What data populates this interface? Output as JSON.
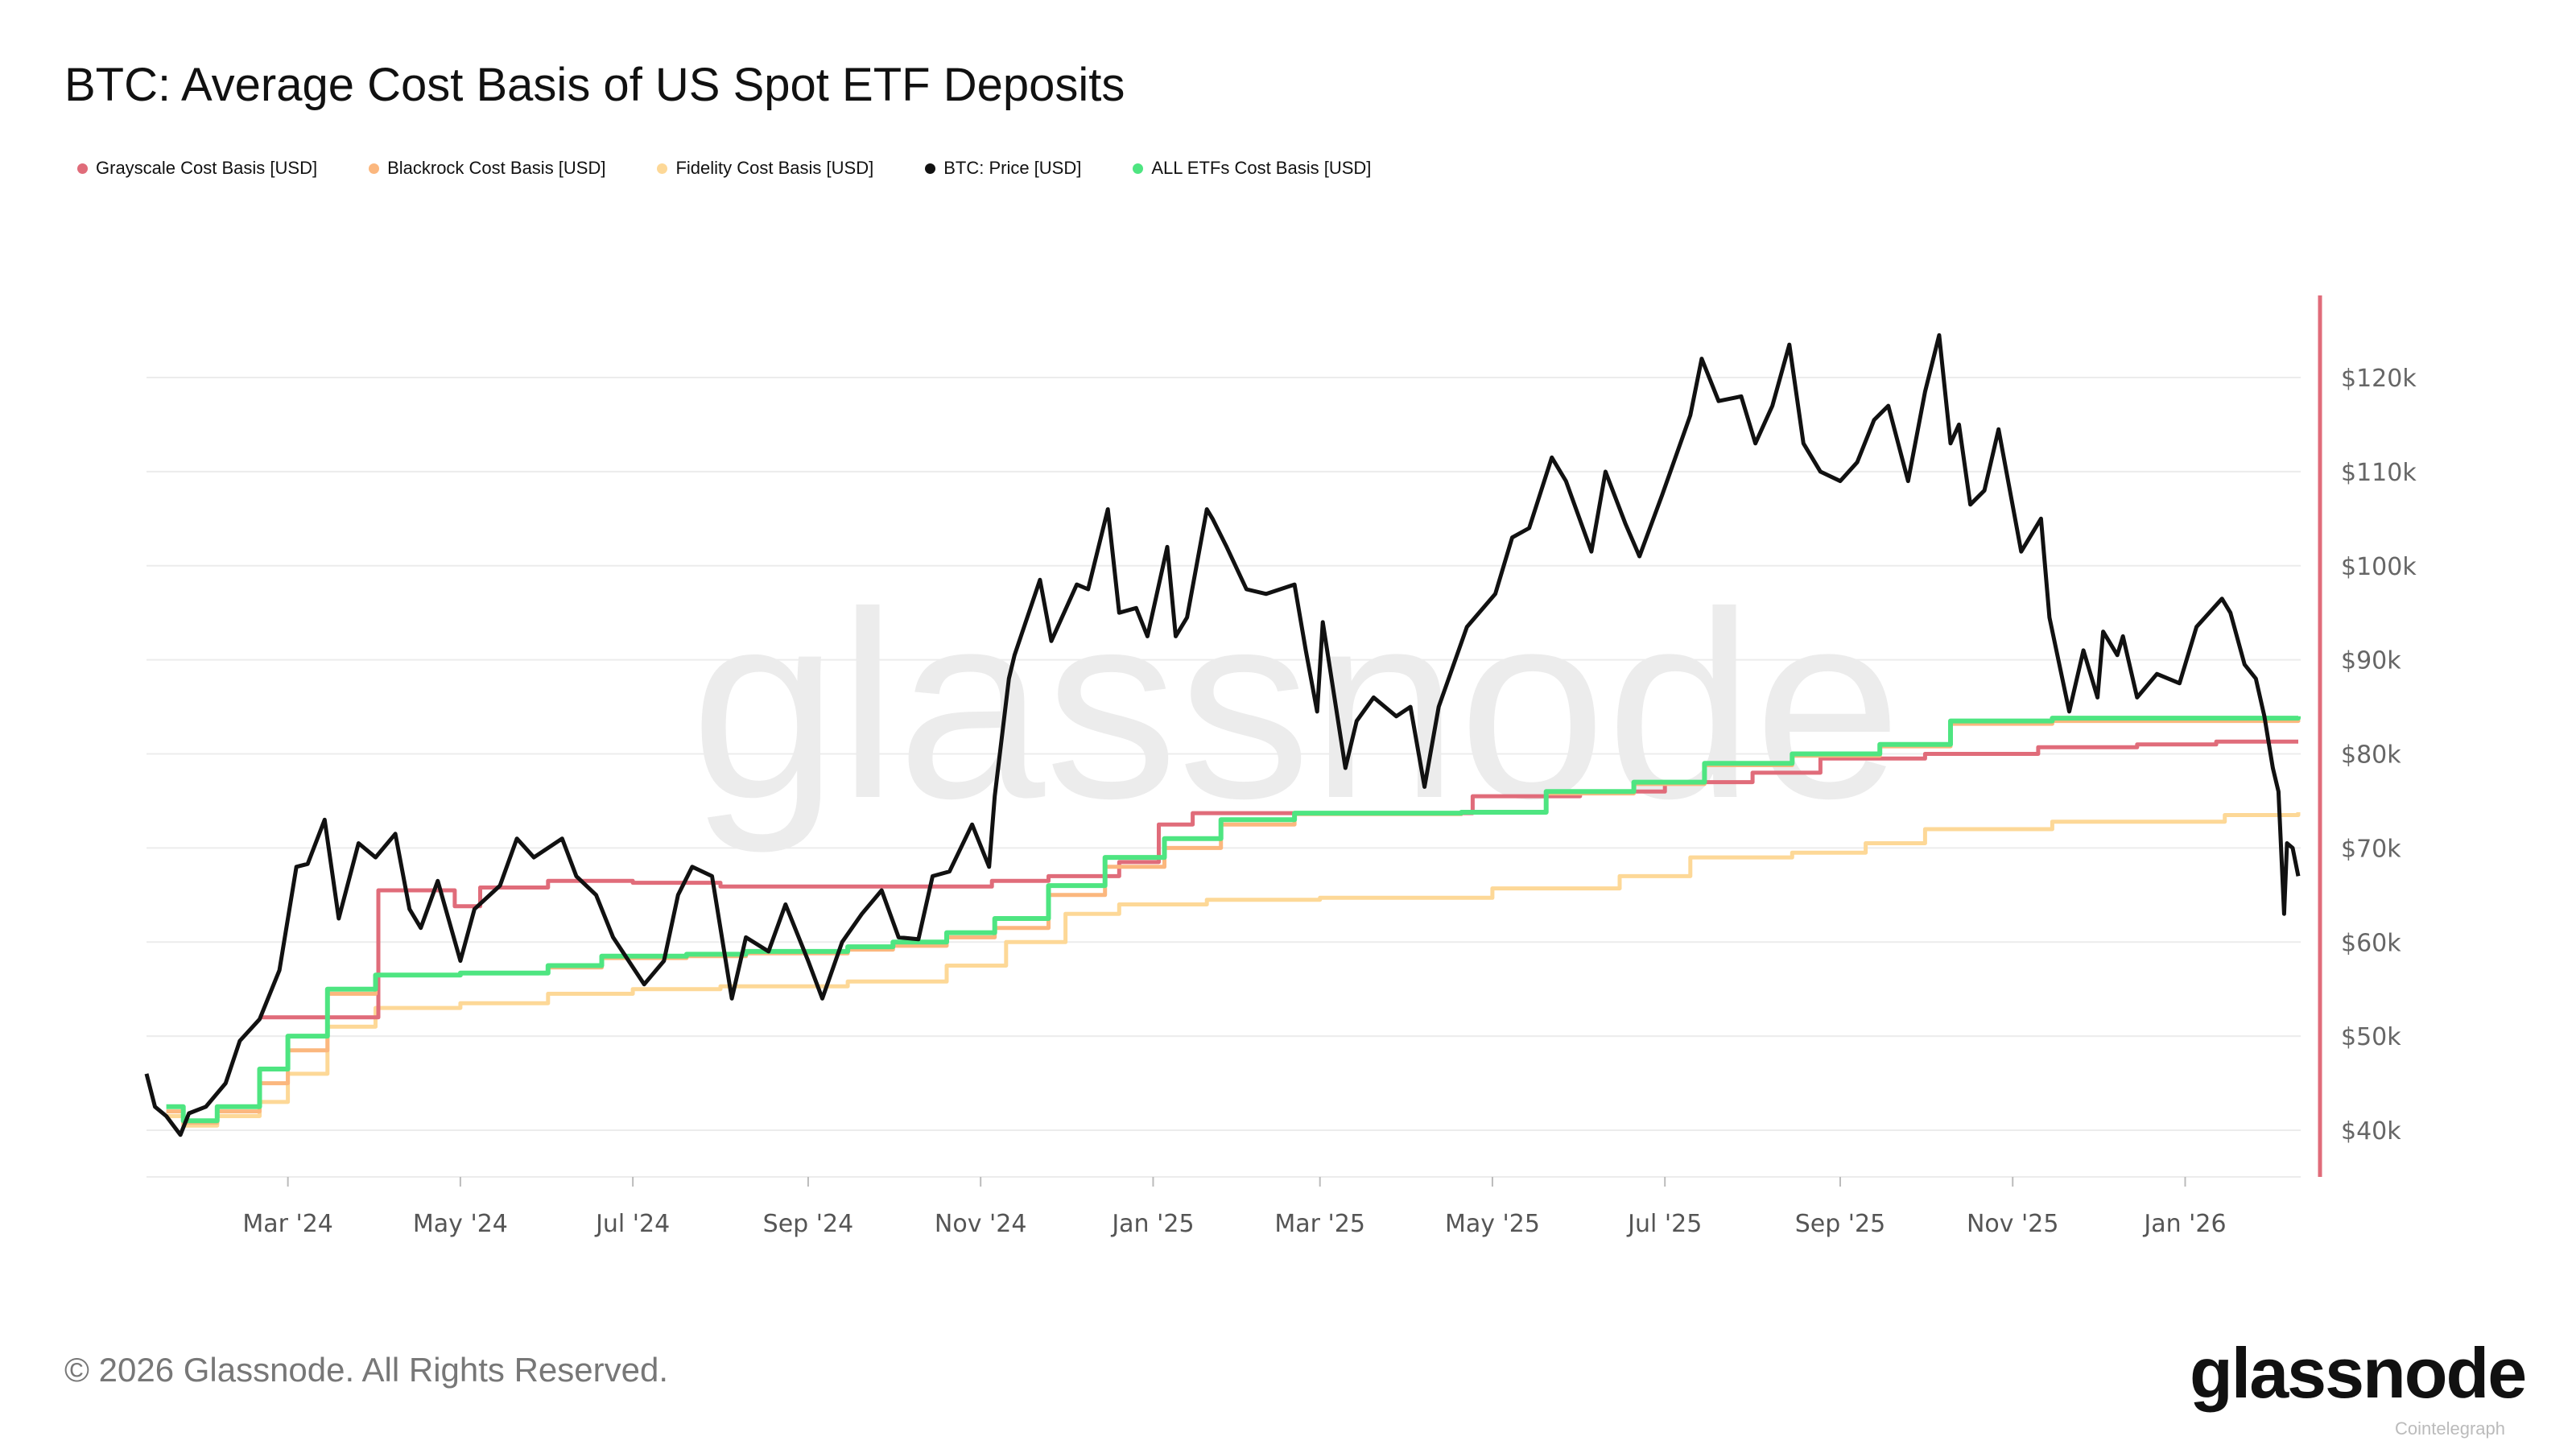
{
  "title": "BTC: Average Cost Basis of US Spot ETF Deposits",
  "footer": "© 2026 Glassnode. All Rights Reserved.",
  "logo": "glassnode",
  "watermark": "glassnode",
  "credit": "Cointelegraph",
  "chart_data": {
    "type": "line",
    "title": "BTC: Average Cost Basis of US Spot ETF Deposits",
    "legend_position": "top-left",
    "grid": true,
    "y_axis_position": "right",
    "ylim": [
      35000,
      129000
    ],
    "xlim": [
      "2024-01-11",
      "2026-02-10"
    ],
    "y_ticks": [
      40000,
      50000,
      60000,
      70000,
      80000,
      90000,
      100000,
      110000,
      120000
    ],
    "y_tick_labels": [
      "$40k",
      "$50k",
      "$60k",
      "$70k",
      "$80k",
      "$90k",
      "$100k",
      "$110k",
      "$120k"
    ],
    "x_ticks": [
      "2024-03-01",
      "2024-05-01",
      "2024-07-01",
      "2024-09-01",
      "2024-11-01",
      "2025-01-01",
      "2025-03-01",
      "2025-05-01",
      "2025-07-01",
      "2025-09-01",
      "2025-11-01",
      "2026-01-01"
    ],
    "x_tick_labels": [
      "Mar '24",
      "May '24",
      "Jul '24",
      "Sep '24",
      "Nov '24",
      "Jan '25",
      "Mar '25",
      "May '25",
      "Jul '25",
      "Sep '25",
      "Nov '25",
      "Jan '26"
    ],
    "series": [
      {
        "name": "Grayscale Cost Basis [USD]",
        "color": "#e06c7a",
        "step": true,
        "points": [
          [
            "2024-02-20",
            52000
          ],
          [
            "2024-04-02",
            65500
          ],
          [
            "2024-04-29",
            63800
          ],
          [
            "2024-05-08",
            65800
          ],
          [
            "2024-06-01",
            66500
          ],
          [
            "2024-07-01",
            66300
          ],
          [
            "2024-08-01",
            65900
          ],
          [
            "2024-11-05",
            66500
          ],
          [
            "2024-11-25",
            67000
          ],
          [
            "2024-12-20",
            68500
          ],
          [
            "2025-01-03",
            72500
          ],
          [
            "2025-01-15",
            73700
          ],
          [
            "2025-04-24",
            75500
          ],
          [
            "2025-06-01",
            76000
          ],
          [
            "2025-07-01",
            77000
          ],
          [
            "2025-08-01",
            78000
          ],
          [
            "2025-08-25",
            79500
          ],
          [
            "2025-10-01",
            80000
          ],
          [
            "2025-11-10",
            80700
          ],
          [
            "2025-12-15",
            81000
          ],
          [
            "2026-01-12",
            81300
          ],
          [
            "2026-02-10",
            81300
          ]
        ]
      },
      {
        "name": "Blackrock Cost Basis [USD]",
        "color": "#fbb77e",
        "step": true,
        "points": [
          [
            "2024-01-18",
            42000
          ],
          [
            "2024-01-24",
            40800
          ],
          [
            "2024-02-05",
            42000
          ],
          [
            "2024-02-20",
            45000
          ],
          [
            "2024-03-01",
            48500
          ],
          [
            "2024-03-15",
            54500
          ],
          [
            "2024-04-01",
            56500
          ],
          [
            "2024-05-01",
            56700
          ],
          [
            "2024-06-01",
            57300
          ],
          [
            "2024-06-20",
            58300
          ],
          [
            "2024-07-20",
            58500
          ],
          [
            "2024-08-10",
            58800
          ],
          [
            "2024-09-15",
            59200
          ],
          [
            "2024-10-01",
            59600
          ],
          [
            "2024-10-20",
            60500
          ],
          [
            "2024-11-06",
            61500
          ],
          [
            "2024-11-25",
            65000
          ],
          [
            "2024-12-15",
            68000
          ],
          [
            "2025-01-05",
            70000
          ],
          [
            "2025-01-25",
            72500
          ],
          [
            "2025-02-20",
            73600
          ],
          [
            "2025-04-20",
            73800
          ],
          [
            "2025-05-20",
            75800
          ],
          [
            "2025-06-20",
            76800
          ],
          [
            "2025-07-15",
            78800
          ],
          [
            "2025-08-15",
            79800
          ],
          [
            "2025-09-15",
            80800
          ],
          [
            "2025-10-10",
            83200
          ],
          [
            "2025-11-15",
            83500
          ],
          [
            "2026-02-10",
            83600
          ]
        ]
      },
      {
        "name": "Fidelity Cost Basis [USD]",
        "color": "#fdd897",
        "step": true,
        "points": [
          [
            "2024-01-18",
            41500
          ],
          [
            "2024-01-24",
            40500
          ],
          [
            "2024-02-05",
            41500
          ],
          [
            "2024-02-20",
            43000
          ],
          [
            "2024-03-01",
            46000
          ],
          [
            "2024-03-15",
            51000
          ],
          [
            "2024-04-01",
            53000
          ],
          [
            "2024-05-01",
            53500
          ],
          [
            "2024-06-01",
            54500
          ],
          [
            "2024-07-01",
            55000
          ],
          [
            "2024-08-01",
            55300
          ],
          [
            "2024-09-15",
            55800
          ],
          [
            "2024-10-20",
            57500
          ],
          [
            "2024-11-10",
            60000
          ],
          [
            "2024-12-01",
            63000
          ],
          [
            "2024-12-20",
            64000
          ],
          [
            "2025-01-20",
            64500
          ],
          [
            "2025-03-01",
            64700
          ],
          [
            "2025-05-01",
            65700
          ],
          [
            "2025-06-15",
            67000
          ],
          [
            "2025-07-10",
            69000
          ],
          [
            "2025-08-15",
            69500
          ],
          [
            "2025-09-10",
            70500
          ],
          [
            "2025-10-01",
            72000
          ],
          [
            "2025-11-15",
            72800
          ],
          [
            "2026-01-15",
            73500
          ],
          [
            "2026-02-10",
            73800
          ]
        ]
      },
      {
        "name": "BTC: Price [USD]",
        "color": "#111111",
        "step": false,
        "points": [
          [
            "2024-01-11",
            46000
          ],
          [
            "2024-01-14",
            42500
          ],
          [
            "2024-01-18",
            41500
          ],
          [
            "2024-01-23",
            39500
          ],
          [
            "2024-01-26",
            41800
          ],
          [
            "2024-02-01",
            42500
          ],
          [
            "2024-02-08",
            45000
          ],
          [
            "2024-02-13",
            49500
          ],
          [
            "2024-02-20",
            51800
          ],
          [
            "2024-02-27",
            57000
          ],
          [
            "2024-03-04",
            68000
          ],
          [
            "2024-03-08",
            68300
          ],
          [
            "2024-03-14",
            73000
          ],
          [
            "2024-03-19",
            62500
          ],
          [
            "2024-03-26",
            70500
          ],
          [
            "2024-04-01",
            69000
          ],
          [
            "2024-04-08",
            71500
          ],
          [
            "2024-04-13",
            63500
          ],
          [
            "2024-04-17",
            61500
          ],
          [
            "2024-04-23",
            66500
          ],
          [
            "2024-05-01",
            58000
          ],
          [
            "2024-05-06",
            63500
          ],
          [
            "2024-05-15",
            66000
          ],
          [
            "2024-05-21",
            71000
          ],
          [
            "2024-05-27",
            69000
          ],
          [
            "2024-06-06",
            71000
          ],
          [
            "2024-06-11",
            67000
          ],
          [
            "2024-06-18",
            65000
          ],
          [
            "2024-06-24",
            60500
          ],
          [
            "2024-07-05",
            55500
          ],
          [
            "2024-07-12",
            58000
          ],
          [
            "2024-07-17",
            65000
          ],
          [
            "2024-07-22",
            68000
          ],
          [
            "2024-07-29",
            67000
          ],
          [
            "2024-08-05",
            54000
          ],
          [
            "2024-08-10",
            60500
          ],
          [
            "2024-08-18",
            59000
          ],
          [
            "2024-08-24",
            64000
          ],
          [
            "2024-09-01",
            58000
          ],
          [
            "2024-09-06",
            54000
          ],
          [
            "2024-09-13",
            60000
          ],
          [
            "2024-09-20",
            63000
          ],
          [
            "2024-09-27",
            65500
          ],
          [
            "2024-10-03",
            60500
          ],
          [
            "2024-10-10",
            60300
          ],
          [
            "2024-10-15",
            67000
          ],
          [
            "2024-10-21",
            67500
          ],
          [
            "2024-10-29",
            72500
          ],
          [
            "2024-11-04",
            68000
          ],
          [
            "2024-11-06",
            75500
          ],
          [
            "2024-11-11",
            88000
          ],
          [
            "2024-11-13",
            90500
          ],
          [
            "2024-11-22",
            98500
          ],
          [
            "2024-11-26",
            92000
          ],
          [
            "2024-12-05",
            98000
          ],
          [
            "2024-12-09",
            97500
          ],
          [
            "2024-12-16",
            106000
          ],
          [
            "2024-12-20",
            95000
          ],
          [
            "2024-12-26",
            95500
          ],
          [
            "2024-12-30",
            92500
          ],
          [
            "2025-01-06",
            102000
          ],
          [
            "2025-01-09",
            92500
          ],
          [
            "2025-01-13",
            94500
          ],
          [
            "2025-01-20",
            106000
          ],
          [
            "2025-01-22",
            105000
          ],
          [
            "2025-01-27",
            102000
          ],
          [
            "2025-02-03",
            97500
          ],
          [
            "2025-02-10",
            97000
          ],
          [
            "2025-02-20",
            98000
          ],
          [
            "2025-02-24",
            91000
          ],
          [
            "2025-02-28",
            84500
          ],
          [
            "2025-03-02",
            94000
          ],
          [
            "2025-03-10",
            78500
          ],
          [
            "2025-03-14",
            83500
          ],
          [
            "2025-03-20",
            86000
          ],
          [
            "2025-03-28",
            84000
          ],
          [
            "2025-04-02",
            85000
          ],
          [
            "2025-04-07",
            76500
          ],
          [
            "2025-04-12",
            85000
          ],
          [
            "2025-04-22",
            93500
          ],
          [
            "2025-05-02",
            97000
          ],
          [
            "2025-05-08",
            103000
          ],
          [
            "2025-05-14",
            104000
          ],
          [
            "2025-05-22",
            111500
          ],
          [
            "2025-05-27",
            109000
          ],
          [
            "2025-06-05",
            101500
          ],
          [
            "2025-06-10",
            110000
          ],
          [
            "2025-06-17",
            104500
          ],
          [
            "2025-06-22",
            101000
          ],
          [
            "2025-06-30",
            107500
          ],
          [
            "2025-07-10",
            116000
          ],
          [
            "2025-07-14",
            122000
          ],
          [
            "2025-07-20",
            117500
          ],
          [
            "2025-07-28",
            118000
          ],
          [
            "2025-08-02",
            113000
          ],
          [
            "2025-08-08",
            117000
          ],
          [
            "2025-08-14",
            123500
          ],
          [
            "2025-08-19",
            113000
          ],
          [
            "2025-08-25",
            110000
          ],
          [
            "2025-09-01",
            109000
          ],
          [
            "2025-09-07",
            111000
          ],
          [
            "2025-09-13",
            115500
          ],
          [
            "2025-09-18",
            117000
          ],
          [
            "2025-09-25",
            109000
          ],
          [
            "2025-10-01",
            118500
          ],
          [
            "2025-10-06",
            124500
          ],
          [
            "2025-10-10",
            113000
          ],
          [
            "2025-10-13",
            115000
          ],
          [
            "2025-10-17",
            106500
          ],
          [
            "2025-10-22",
            108000
          ],
          [
            "2025-10-27",
            114500
          ],
          [
            "2025-11-04",
            101500
          ],
          [
            "2025-11-11",
            105000
          ],
          [
            "2025-11-14",
            94500
          ],
          [
            "2025-11-21",
            84500
          ],
          [
            "2025-11-26",
            91000
          ],
          [
            "2025-12-01",
            86000
          ],
          [
            "2025-12-03",
            93000
          ],
          [
            "2025-12-08",
            90500
          ],
          [
            "2025-12-10",
            92500
          ],
          [
            "2025-12-15",
            86000
          ],
          [
            "2025-12-22",
            88500
          ],
          [
            "2025-12-30",
            87500
          ],
          [
            "2026-01-05",
            93500
          ],
          [
            "2026-01-14",
            96500
          ],
          [
            "2026-01-17",
            95000
          ],
          [
            "2026-01-22",
            89500
          ],
          [
            "2026-01-26",
            88000
          ],
          [
            "2026-01-29",
            84000
          ],
          [
            "2026-02-01",
            78500
          ],
          [
            "2026-02-03",
            76000
          ],
          [
            "2026-02-05",
            63000
          ],
          [
            "2026-02-06",
            70500
          ],
          [
            "2026-02-08",
            70000
          ],
          [
            "2026-02-10",
            67000
          ]
        ]
      },
      {
        "name": "ALL ETFs Cost Basis [USD]",
        "color": "#4ee581",
        "step": true,
        "points": [
          [
            "2024-01-18",
            42500
          ],
          [
            "2024-01-24",
            41000
          ],
          [
            "2024-02-05",
            42500
          ],
          [
            "2024-02-20",
            46500
          ],
          [
            "2024-03-01",
            50000
          ],
          [
            "2024-03-15",
            55000
          ],
          [
            "2024-04-01",
            56500
          ],
          [
            "2024-05-01",
            56700
          ],
          [
            "2024-06-01",
            57500
          ],
          [
            "2024-06-20",
            58500
          ],
          [
            "2024-07-20",
            58700
          ],
          [
            "2024-08-10",
            59000
          ],
          [
            "2024-09-15",
            59500
          ],
          [
            "2024-10-01",
            60000
          ],
          [
            "2024-10-20",
            61000
          ],
          [
            "2024-11-06",
            62500
          ],
          [
            "2024-11-25",
            66000
          ],
          [
            "2024-12-15",
            69000
          ],
          [
            "2025-01-05",
            71000
          ],
          [
            "2025-01-25",
            73000
          ],
          [
            "2025-02-20",
            73700
          ],
          [
            "2025-04-20",
            73800
          ],
          [
            "2025-05-20",
            76000
          ],
          [
            "2025-06-20",
            77000
          ],
          [
            "2025-07-15",
            79000
          ],
          [
            "2025-08-15",
            80000
          ],
          [
            "2025-09-15",
            81000
          ],
          [
            "2025-10-10",
            83500
          ],
          [
            "2025-11-15",
            83800
          ],
          [
            "2026-02-10",
            84000
          ]
        ]
      }
    ]
  }
}
